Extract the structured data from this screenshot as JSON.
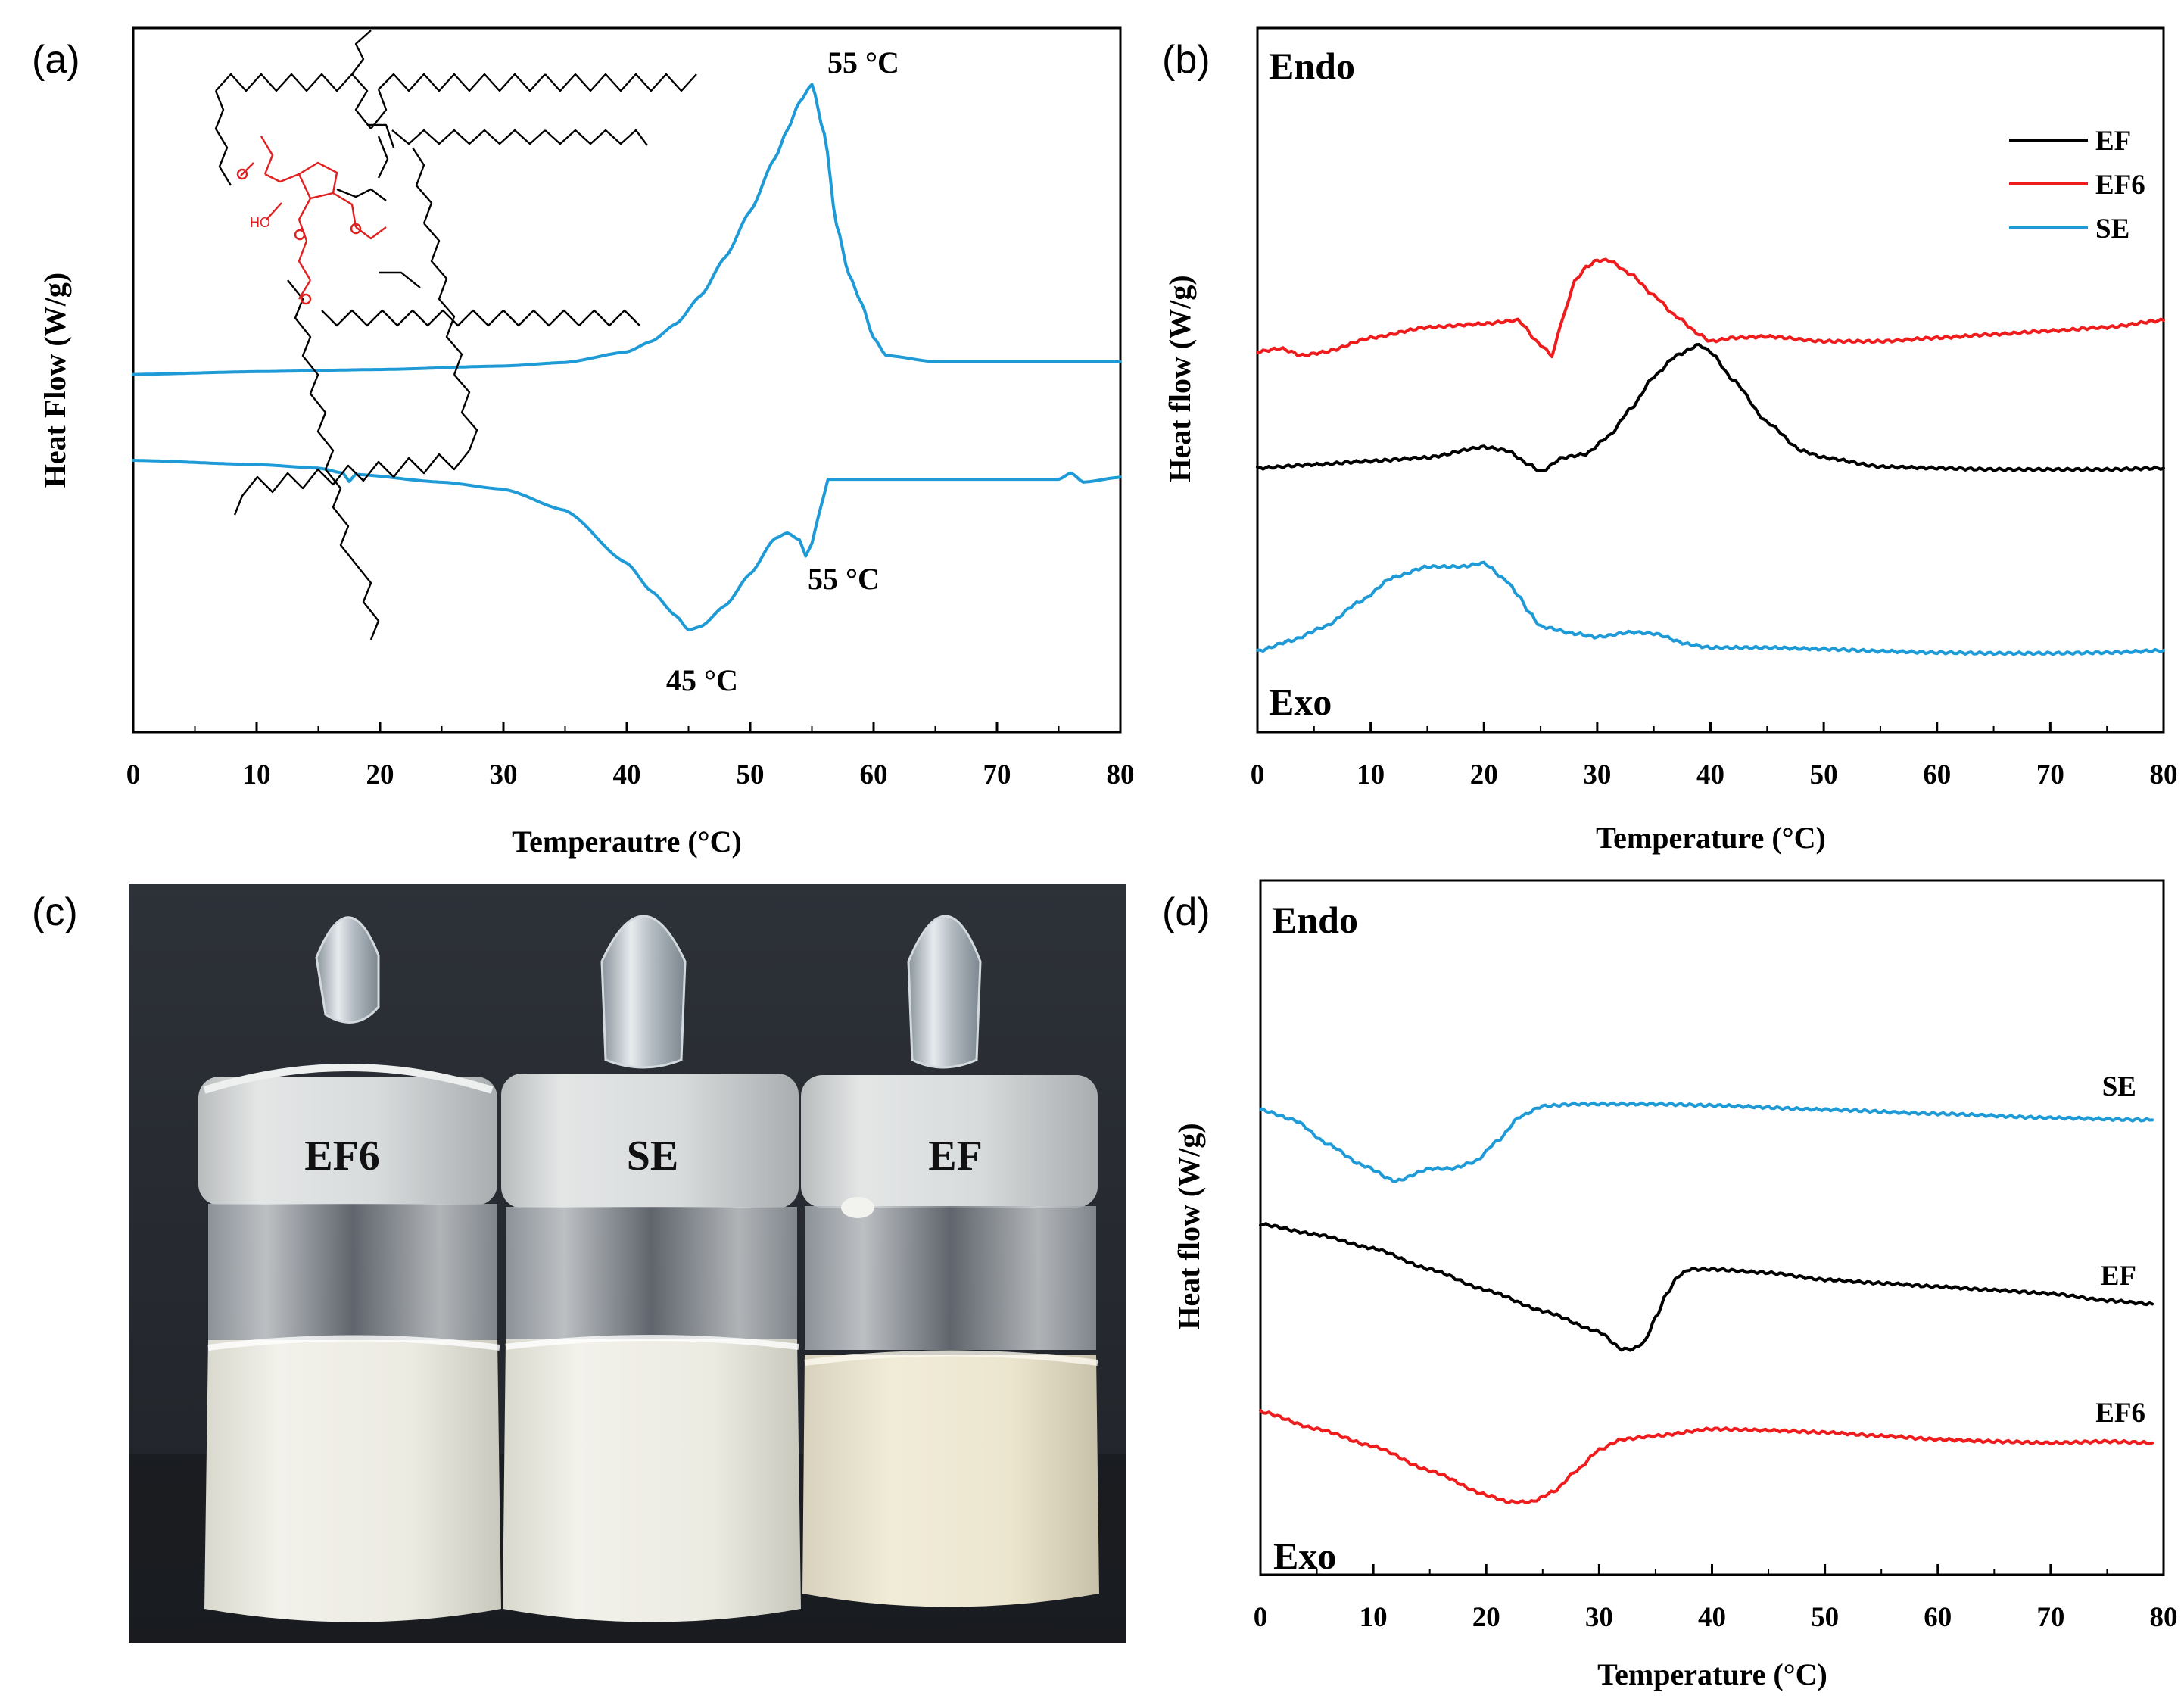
{
  "panels": {
    "a": {
      "label": "(a)"
    },
    "b": {
      "label": "(b)"
    },
    "c": {
      "label": "(c)"
    },
    "d": {
      "label": "(d)"
    }
  },
  "colors": {
    "SE": "#1E9BD7",
    "EF": "#000000",
    "EF6": "#EE1C1C"
  },
  "chart_data": [
    {
      "id": "a",
      "type": "line",
      "xlabel": "Temperautre (°C)",
      "ylabel": "Heat Flow (W/g)",
      "xlim": [
        0,
        80
      ],
      "xticks": [
        0,
        10,
        20,
        30,
        40,
        50,
        60,
        70,
        80
      ],
      "y_units": "relative (y increases upward)",
      "ylim": [
        0,
        100
      ],
      "annotations": [
        "55 °C",
        "55 °C",
        "45 °C"
      ],
      "inset": "chemical structure (sucrose ester)",
      "series": [
        {
          "id": "heating",
          "color_key": "SE",
          "x": [
            0,
            10,
            20,
            30,
            35,
            40,
            42,
            44,
            46,
            48,
            50,
            52,
            53,
            54,
            55,
            56,
            57,
            58,
            59,
            60,
            61,
            65,
            70,
            75,
            80
          ],
          "y": [
            50.8,
            51.2,
            51.5,
            52.0,
            52.5,
            54.0,
            55.5,
            58.0,
            62.0,
            67.5,
            74.0,
            81.5,
            85.5,
            89.5,
            92.0,
            85.0,
            72.0,
            65.0,
            61.0,
            56.0,
            53.5,
            52.6,
            52.6,
            52.6,
            52.6
          ]
        },
        {
          "id": "cooling",
          "color_key": "SE",
          "x": [
            0,
            10,
            15,
            17,
            17.5,
            18,
            25,
            30,
            35,
            40,
            42,
            44,
            45,
            46,
            48,
            50,
            52,
            53,
            54,
            54.5,
            55,
            55.5,
            56,
            56.3,
            60,
            70,
            75,
            76,
            77,
            80
          ],
          "y": [
            38.6,
            38.0,
            37.5,
            36.8,
            35.6,
            36.6,
            35.5,
            34.5,
            31.5,
            24.0,
            20.0,
            16.5,
            14.5,
            15.0,
            18.0,
            22.5,
            27.5,
            28.3,
            27.3,
            25.0,
            26.8,
            30.5,
            33.8,
            35.9,
            35.9,
            35.9,
            35.9,
            36.8,
            35.5,
            36.2
          ]
        }
      ]
    },
    {
      "id": "b",
      "type": "line",
      "xlabel": "Temperature (°C)",
      "ylabel": "Heat flow (W/g)",
      "xlim": [
        0,
        80
      ],
      "xticks": [
        0,
        10,
        20,
        30,
        40,
        50,
        60,
        70,
        80
      ],
      "ylim": [
        0,
        100
      ],
      "corner_labels": {
        "top": "Endo",
        "bottom": "Exo"
      },
      "legend_position": "top-right",
      "series": [
        {
          "name": "EF",
          "color_key": "EF",
          "x": [
            0,
            5,
            10,
            15,
            20,
            22,
            24,
            25,
            27,
            29,
            31,
            33,
            35,
            37,
            39,
            40,
            42,
            45,
            48,
            50,
            55,
            60,
            65,
            70,
            75,
            80
          ],
          "y": [
            37.5,
            38.0,
            38.5,
            39.0,
            40.5,
            40.0,
            38.0,
            37.0,
            39.0,
            39.5,
            42.0,
            46.0,
            50.5,
            53.5,
            55.0,
            54.0,
            50.0,
            44.0,
            40.0,
            39.0,
            37.7,
            37.5,
            37.3,
            37.3,
            37.3,
            37.5
          ]
        },
        {
          "name": "EF6",
          "color_key": "EF6",
          "x": [
            0,
            2,
            4,
            6,
            10,
            15,
            20,
            23,
            25,
            26,
            27,
            28,
            29,
            30,
            31,
            33,
            35,
            37,
            39,
            40,
            42,
            45,
            50,
            55,
            60,
            65,
            70,
            75,
            80
          ],
          "y": [
            54.0,
            54.5,
            53.5,
            54.0,
            56.0,
            57.5,
            58.0,
            58.5,
            55.0,
            53.5,
            59.0,
            64.0,
            66.0,
            67.0,
            67.0,
            65.0,
            62.0,
            59.0,
            56.5,
            55.5,
            56.0,
            56.2,
            55.5,
            55.5,
            56.0,
            56.5,
            57.0,
            57.5,
            58.5
          ]
        },
        {
          "name": "SE",
          "color_key": "SE",
          "x": [
            0,
            3,
            6,
            9,
            12,
            15,
            18,
            20,
            22,
            23,
            24,
            25,
            28,
            30,
            33,
            35,
            38,
            40,
            45,
            50,
            55,
            60,
            65,
            70,
            75,
            80
          ],
          "y": [
            11.5,
            13.0,
            15.0,
            18.5,
            22.0,
            23.5,
            23.5,
            24.0,
            21.5,
            19.5,
            17.0,
            15.0,
            14.0,
            13.5,
            14.2,
            14.0,
            12.5,
            12.0,
            12.0,
            11.8,
            11.5,
            11.3,
            11.2,
            11.2,
            11.3,
            11.6
          ]
        }
      ]
    },
    {
      "id": "d",
      "type": "line",
      "xlabel": "Temperature (°C)",
      "ylabel": "Heat flow (W/g)",
      "xlim": [
        0,
        80
      ],
      "xticks": [
        0,
        10,
        20,
        30,
        40,
        50,
        60,
        70,
        80
      ],
      "ylim": [
        0,
        100
      ],
      "corner_labels": {
        "top": "Endo",
        "bottom": "Exo"
      },
      "series": [
        {
          "name": "SE",
          "color_key": "SE",
          "x": [
            0,
            3,
            6,
            9,
            12,
            15,
            17,
            19,
            21,
            23,
            25,
            28,
            30,
            35,
            40,
            50,
            60,
            70,
            79
          ],
          "y": [
            67.0,
            65.5,
            62.0,
            59.0,
            56.7,
            58.5,
            58.5,
            59.5,
            62.5,
            66.0,
            67.5,
            67.8,
            67.8,
            67.8,
            67.6,
            67.0,
            66.4,
            65.8,
            65.5
          ]
        },
        {
          "name": "EF",
          "color_key": "EF",
          "x": [
            0,
            5,
            10,
            15,
            20,
            25,
            30,
            32,
            33,
            34,
            35,
            36,
            37,
            38,
            40,
            45,
            50,
            55,
            60,
            65,
            70,
            75,
            79
          ],
          "y": [
            50.5,
            49.0,
            47.0,
            44.0,
            41.0,
            38.0,
            35.0,
            32.5,
            32.5,
            33.5,
            37.0,
            40.5,
            43.0,
            44.0,
            44.0,
            43.5,
            42.5,
            42.0,
            41.5,
            41.0,
            40.5,
            39.5,
            39.0
          ]
        },
        {
          "name": "EF6",
          "color_key": "EF6",
          "x": [
            0,
            5,
            10,
            15,
            20,
            22,
            24,
            26,
            28,
            30,
            32,
            35,
            40,
            45,
            50,
            55,
            60,
            65,
            70,
            75,
            79
          ],
          "y": [
            23.5,
            21.0,
            18.5,
            15.0,
            11.5,
            10.5,
            10.5,
            12.0,
            15.0,
            18.0,
            19.5,
            20.0,
            21.0,
            20.8,
            20.5,
            20.0,
            19.5,
            19.2,
            19.0,
            19.2,
            19.0
          ]
        }
      ],
      "curve_labels": {
        "SE": "SE",
        "EF": "EF",
        "EF6": "EF6"
      }
    }
  ],
  "photo": {
    "jars": [
      {
        "label": "EF6"
      },
      {
        "label": "SE"
      },
      {
        "label": "EF"
      }
    ]
  }
}
